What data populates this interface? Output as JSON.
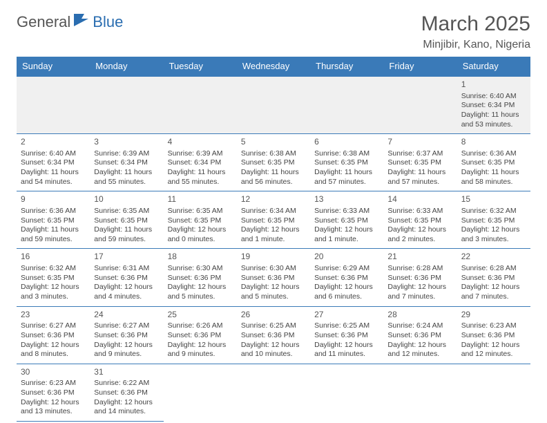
{
  "logo": {
    "text1": "General",
    "text2": "Blue"
  },
  "title": "March 2025",
  "location": "Minjibir, Kano, Nigeria",
  "colors": {
    "header_bg": "#3a7ab8",
    "header_text": "#ffffff",
    "week1_bg": "#f0f0f0",
    "border": "#3a7ab8",
    "text": "#444444",
    "title_text": "#555555"
  },
  "weekdays": [
    "Sunday",
    "Monday",
    "Tuesday",
    "Wednesday",
    "Thursday",
    "Friday",
    "Saturday"
  ],
  "weeks": [
    [
      null,
      null,
      null,
      null,
      null,
      null,
      {
        "d": "1",
        "sr": "Sunrise: 6:40 AM",
        "ss": "Sunset: 6:34 PM",
        "dl": "Daylight: 11 hours and 53 minutes."
      }
    ],
    [
      {
        "d": "2",
        "sr": "Sunrise: 6:40 AM",
        "ss": "Sunset: 6:34 PM",
        "dl": "Daylight: 11 hours and 54 minutes."
      },
      {
        "d": "3",
        "sr": "Sunrise: 6:39 AM",
        "ss": "Sunset: 6:34 PM",
        "dl": "Daylight: 11 hours and 55 minutes."
      },
      {
        "d": "4",
        "sr": "Sunrise: 6:39 AM",
        "ss": "Sunset: 6:34 PM",
        "dl": "Daylight: 11 hours and 55 minutes."
      },
      {
        "d": "5",
        "sr": "Sunrise: 6:38 AM",
        "ss": "Sunset: 6:35 PM",
        "dl": "Daylight: 11 hours and 56 minutes."
      },
      {
        "d": "6",
        "sr": "Sunrise: 6:38 AM",
        "ss": "Sunset: 6:35 PM",
        "dl": "Daylight: 11 hours and 57 minutes."
      },
      {
        "d": "7",
        "sr": "Sunrise: 6:37 AM",
        "ss": "Sunset: 6:35 PM",
        "dl": "Daylight: 11 hours and 57 minutes."
      },
      {
        "d": "8",
        "sr": "Sunrise: 6:36 AM",
        "ss": "Sunset: 6:35 PM",
        "dl": "Daylight: 11 hours and 58 minutes."
      }
    ],
    [
      {
        "d": "9",
        "sr": "Sunrise: 6:36 AM",
        "ss": "Sunset: 6:35 PM",
        "dl": "Daylight: 11 hours and 59 minutes."
      },
      {
        "d": "10",
        "sr": "Sunrise: 6:35 AM",
        "ss": "Sunset: 6:35 PM",
        "dl": "Daylight: 11 hours and 59 minutes."
      },
      {
        "d": "11",
        "sr": "Sunrise: 6:35 AM",
        "ss": "Sunset: 6:35 PM",
        "dl": "Daylight: 12 hours and 0 minutes."
      },
      {
        "d": "12",
        "sr": "Sunrise: 6:34 AM",
        "ss": "Sunset: 6:35 PM",
        "dl": "Daylight: 12 hours and 1 minute."
      },
      {
        "d": "13",
        "sr": "Sunrise: 6:33 AM",
        "ss": "Sunset: 6:35 PM",
        "dl": "Daylight: 12 hours and 1 minute."
      },
      {
        "d": "14",
        "sr": "Sunrise: 6:33 AM",
        "ss": "Sunset: 6:35 PM",
        "dl": "Daylight: 12 hours and 2 minutes."
      },
      {
        "d": "15",
        "sr": "Sunrise: 6:32 AM",
        "ss": "Sunset: 6:35 PM",
        "dl": "Daylight: 12 hours and 3 minutes."
      }
    ],
    [
      {
        "d": "16",
        "sr": "Sunrise: 6:32 AM",
        "ss": "Sunset: 6:35 PM",
        "dl": "Daylight: 12 hours and 3 minutes."
      },
      {
        "d": "17",
        "sr": "Sunrise: 6:31 AM",
        "ss": "Sunset: 6:36 PM",
        "dl": "Daylight: 12 hours and 4 minutes."
      },
      {
        "d": "18",
        "sr": "Sunrise: 6:30 AM",
        "ss": "Sunset: 6:36 PM",
        "dl": "Daylight: 12 hours and 5 minutes."
      },
      {
        "d": "19",
        "sr": "Sunrise: 6:30 AM",
        "ss": "Sunset: 6:36 PM",
        "dl": "Daylight: 12 hours and 5 minutes."
      },
      {
        "d": "20",
        "sr": "Sunrise: 6:29 AM",
        "ss": "Sunset: 6:36 PM",
        "dl": "Daylight: 12 hours and 6 minutes."
      },
      {
        "d": "21",
        "sr": "Sunrise: 6:28 AM",
        "ss": "Sunset: 6:36 PM",
        "dl": "Daylight: 12 hours and 7 minutes."
      },
      {
        "d": "22",
        "sr": "Sunrise: 6:28 AM",
        "ss": "Sunset: 6:36 PM",
        "dl": "Daylight: 12 hours and 7 minutes."
      }
    ],
    [
      {
        "d": "23",
        "sr": "Sunrise: 6:27 AM",
        "ss": "Sunset: 6:36 PM",
        "dl": "Daylight: 12 hours and 8 minutes."
      },
      {
        "d": "24",
        "sr": "Sunrise: 6:27 AM",
        "ss": "Sunset: 6:36 PM",
        "dl": "Daylight: 12 hours and 9 minutes."
      },
      {
        "d": "25",
        "sr": "Sunrise: 6:26 AM",
        "ss": "Sunset: 6:36 PM",
        "dl": "Daylight: 12 hours and 9 minutes."
      },
      {
        "d": "26",
        "sr": "Sunrise: 6:25 AM",
        "ss": "Sunset: 6:36 PM",
        "dl": "Daylight: 12 hours and 10 minutes."
      },
      {
        "d": "27",
        "sr": "Sunrise: 6:25 AM",
        "ss": "Sunset: 6:36 PM",
        "dl": "Daylight: 12 hours and 11 minutes."
      },
      {
        "d": "28",
        "sr": "Sunrise: 6:24 AM",
        "ss": "Sunset: 6:36 PM",
        "dl": "Daylight: 12 hours and 12 minutes."
      },
      {
        "d": "29",
        "sr": "Sunrise: 6:23 AM",
        "ss": "Sunset: 6:36 PM",
        "dl": "Daylight: 12 hours and 12 minutes."
      }
    ],
    [
      {
        "d": "30",
        "sr": "Sunrise: 6:23 AM",
        "ss": "Sunset: 6:36 PM",
        "dl": "Daylight: 12 hours and 13 minutes."
      },
      {
        "d": "31",
        "sr": "Sunrise: 6:22 AM",
        "ss": "Sunset: 6:36 PM",
        "dl": "Daylight: 12 hours and 14 minutes."
      },
      null,
      null,
      null,
      null,
      null
    ]
  ]
}
